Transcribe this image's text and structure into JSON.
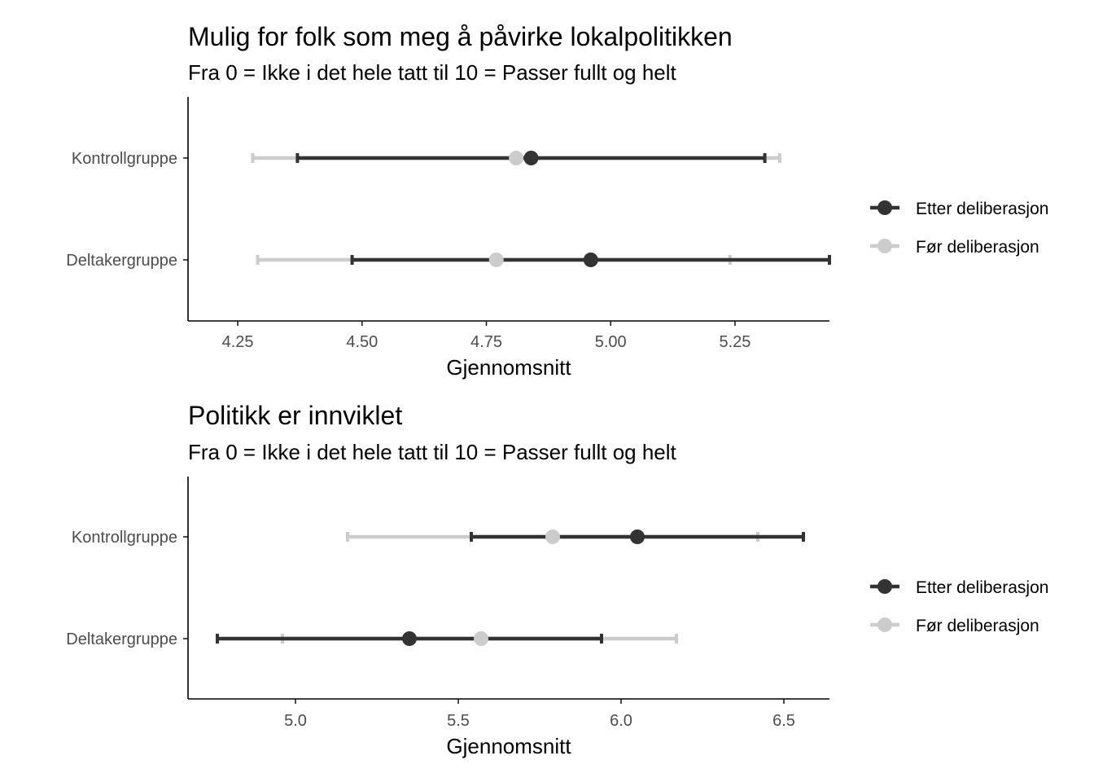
{
  "colors": {
    "etter": "#333333",
    "for": "#cccccc",
    "axis": "#000000",
    "tick_text": "#4d4d4d"
  },
  "chart_data": [
    {
      "type": "dot-errorbar",
      "title": "Mulig for folk som meg å påvirke lokalpolitikken",
      "subtitle": "Fra 0 = Ikke i det hele tatt til 10 = Passer fullt og helt",
      "xlabel": "Gjennomsnitt",
      "ylabel": "",
      "xlim": [
        4.15,
        5.44
      ],
      "xticks": [
        4.25,
        4.5,
        4.75,
        5.0,
        5.25
      ],
      "xtick_labels": [
        "4.25",
        "4.50",
        "4.75",
        "5.00",
        "5.25"
      ],
      "categories": [
        "Kontrollgruppe",
        "Deltakergruppe"
      ],
      "legend": {
        "position": "right",
        "entries": [
          "Etter deliberasjon",
          "Før deliberasjon"
        ]
      },
      "grid": false,
      "series": [
        {
          "name": "Før deliberasjon",
          "points": [
            {
              "category": "Kontrollgruppe",
              "mean": 4.81,
              "low": 4.28,
              "high": 5.34
            },
            {
              "category": "Deltakergruppe",
              "mean": 4.77,
              "low": 4.29,
              "high": 5.24
            }
          ]
        },
        {
          "name": "Etter deliberasjon",
          "points": [
            {
              "category": "Kontrollgruppe",
              "mean": 4.84,
              "low": 4.37,
              "high": 5.31
            },
            {
              "category": "Deltakergruppe",
              "mean": 4.96,
              "low": 4.48,
              "high": 5.44
            }
          ]
        }
      ]
    },
    {
      "type": "dot-errorbar",
      "title": "Politikk er innviklet",
      "subtitle": "Fra 0 = Ikke i det hele tatt til 10 = Passer fullt og helt",
      "xlabel": "Gjennomsnitt",
      "ylabel": "",
      "xlim": [
        4.67,
        6.64
      ],
      "xticks": [
        5.0,
        5.5,
        6.0,
        6.5
      ],
      "xtick_labels": [
        "5.0",
        "5.5",
        "6.0",
        "6.5"
      ],
      "categories": [
        "Kontrollgruppe",
        "Deltakergruppe"
      ],
      "legend": {
        "position": "right",
        "entries": [
          "Etter deliberasjon",
          "Før deliberasjon"
        ]
      },
      "grid": false,
      "series": [
        {
          "name": "Før deliberasjon",
          "points": [
            {
              "category": "Kontrollgruppe",
              "mean": 5.79,
              "low": 5.16,
              "high": 6.42
            },
            {
              "category": "Deltakergruppe",
              "mean": 5.57,
              "low": 4.96,
              "high": 6.17
            }
          ]
        },
        {
          "name": "Etter deliberasjon",
          "points": [
            {
              "category": "Kontrollgruppe",
              "mean": 6.05,
              "low": 5.54,
              "high": 6.56
            },
            {
              "category": "Deltakergruppe",
              "mean": 5.35,
              "low": 4.76,
              "high": 5.94
            }
          ]
        }
      ]
    }
  ]
}
